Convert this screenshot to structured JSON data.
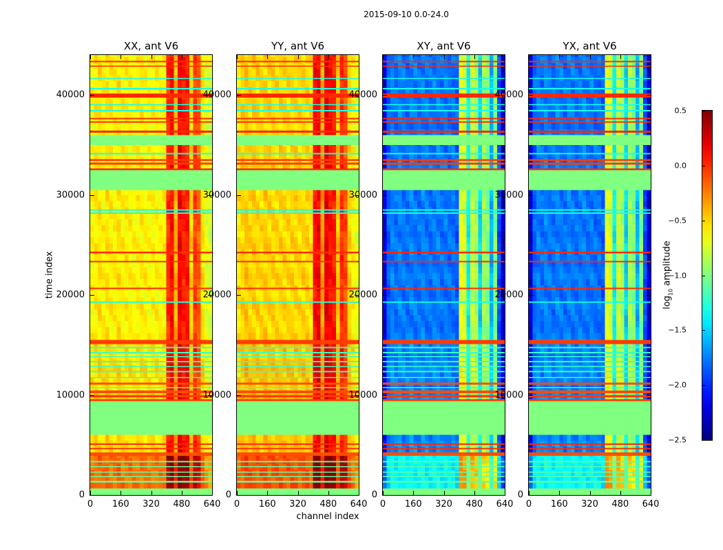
{
  "chart_data": {
    "type": "heatmap",
    "title": "2015-09-10 0.0-24.0",
    "xlabel": "channel index",
    "ylabel": "time index",
    "xlim": [
      0,
      640
    ],
    "ylim": [
      0,
      44000
    ],
    "xticks": [
      "0",
      "160",
      "320",
      "480",
      "640"
    ],
    "yticks": [
      "0",
      "10000",
      "20000",
      "30000",
      "40000"
    ],
    "colorbar": {
      "label_main": "log",
      "label_sub": "10",
      "label_rest": " amplitude",
      "range": [
        -2.5,
        0.5
      ],
      "ticks": [
        "0.5",
        "0.0",
        "−0.5",
        "−1.0",
        "−1.5",
        "−2.0",
        "−2.5"
      ],
      "tick_values": [
        0.5,
        0.0,
        -0.5,
        -1.0,
        -1.5,
        -2.0,
        -2.5
      ],
      "colormap": "jet"
    },
    "flagged_value": -1.0,
    "channel_bin_width": 20,
    "panels": [
      {
        "title": "XX, ant V6",
        "group": "parallel",
        "column_profile": [
          -0.62,
          -0.58,
          -0.55,
          -0.6,
          -0.55,
          -0.58,
          -0.6,
          -0.55,
          -0.6,
          -0.58,
          -0.6,
          -0.62,
          -0.6,
          -0.58,
          -0.6,
          -0.62,
          -0.6,
          -0.6,
          -0.62,
          -0.6,
          0.0,
          0.1,
          -0.4,
          0.15,
          0.05,
          0.05,
          -0.5,
          -0.05,
          -0.15,
          -0.55,
          -0.7,
          -0.75
        ]
      },
      {
        "title": "YY, ant V6",
        "group": "parallel",
        "column_profile": [
          -0.55,
          -0.5,
          -0.45,
          -0.5,
          -0.48,
          -0.5,
          -0.52,
          -0.48,
          -0.5,
          -0.5,
          -0.52,
          -0.5,
          -0.5,
          -0.52,
          -0.5,
          -0.5,
          -0.52,
          -0.5,
          -0.5,
          -0.55,
          0.1,
          0.15,
          -0.35,
          0.2,
          0.1,
          0.05,
          -0.45,
          0.0,
          -0.1,
          -0.5,
          -0.6,
          -0.7
        ]
      },
      {
        "title": "XY, ant V6",
        "group": "cross",
        "column_profile": [
          -2.2,
          -1.85,
          -1.75,
          -1.8,
          -1.75,
          -1.78,
          -1.8,
          -1.75,
          -1.78,
          -1.8,
          -1.75,
          -1.78,
          -1.8,
          -1.78,
          -1.75,
          -1.8,
          -1.78,
          -1.8,
          -1.8,
          -1.85,
          -0.7,
          -0.75,
          -1.4,
          -0.8,
          -0.9,
          -1.5,
          -0.9,
          -1.0,
          -1.6,
          -1.0,
          -1.9,
          -2.3
        ]
      },
      {
        "title": "YX, ant V6",
        "group": "cross",
        "column_profile": [
          -2.2,
          -1.85,
          -1.75,
          -1.8,
          -1.75,
          -1.78,
          -1.8,
          -1.75,
          -1.78,
          -1.8,
          -1.75,
          -1.78,
          -1.8,
          -1.78,
          -1.75,
          -1.8,
          -1.78,
          -1.8,
          -1.8,
          -1.85,
          -0.7,
          -0.75,
          -1.4,
          -0.8,
          -0.9,
          -1.5,
          -0.9,
          -1.0,
          -1.6,
          -1.0,
          -1.9,
          -2.3
        ]
      }
    ],
    "time_bands": [
      {
        "t0": 0,
        "t1": 690,
        "kind": "flagged"
      },
      {
        "t0": 690,
        "t1": 4260,
        "kind": "data",
        "offset": 0.4
      },
      {
        "t0": 4260,
        "t1": 6050,
        "kind": "data",
        "offset": 0.05
      },
      {
        "t0": 6050,
        "t1": 9400,
        "kind": "flagged"
      },
      {
        "t0": 9400,
        "t1": 15600,
        "kind": "data",
        "offset": 0.05
      },
      {
        "t0": 15600,
        "t1": 30500,
        "kind": "data",
        "offset": 0.0
      },
      {
        "t0": 30500,
        "t1": 32500,
        "kind": "flagged"
      },
      {
        "t0": 32500,
        "t1": 35000,
        "kind": "data",
        "offset": 0.0
      },
      {
        "t0": 35000,
        "t1": 36000,
        "kind": "flagged"
      },
      {
        "t0": 36000,
        "t1": 44000,
        "kind": "data",
        "offset": 0.0
      }
    ],
    "lines": [
      {
        "t0": 1250,
        "t1": 1400,
        "value": -1.1
      },
      {
        "t0": 1800,
        "t1": 1900,
        "value": -1.1
      },
      {
        "t0": 2250,
        "t1": 2350,
        "value": -1.1
      },
      {
        "t0": 2800,
        "t1": 2900,
        "value": -1.1
      },
      {
        "t0": 3300,
        "t1": 3400,
        "value": -1.1
      },
      {
        "t0": 3950,
        "t1": 4260,
        "value": -0.1
      },
      {
        "t0": 4600,
        "t1": 4700,
        "value": 0.0
      },
      {
        "t0": 5050,
        "t1": 5150,
        "value": 0.0
      },
      {
        "t0": 9400,
        "t1": 9600,
        "value": -0.05
      },
      {
        "t0": 9800,
        "t1": 10000,
        "value": -0.05
      },
      {
        "t0": 10200,
        "t1": 10450,
        "value": -0.1
      },
      {
        "t0": 10700,
        "t1": 10800,
        "value": -1.2
      },
      {
        "t0": 11050,
        "t1": 11250,
        "value": -0.1
      },
      {
        "t0": 11700,
        "t1": 11800,
        "value": -1.2
      },
      {
        "t0": 12300,
        "t1": 12400,
        "value": -1.2
      },
      {
        "t0": 12800,
        "t1": 12900,
        "value": -1.2
      },
      {
        "t0": 13300,
        "t1": 13400,
        "value": -1.2
      },
      {
        "t0": 13800,
        "t1": 13900,
        "value": -1.2
      },
      {
        "t0": 14200,
        "t1": 14300,
        "value": -1.2
      },
      {
        "t0": 14700,
        "t1": 14800,
        "value": -1.2
      },
      {
        "t0": 15100,
        "t1": 15500,
        "value": -0.05
      },
      {
        "t0": 19250,
        "t1": 19350,
        "value": -1.3
      },
      {
        "t0": 20600,
        "t1": 20720,
        "value": 0.0
      },
      {
        "t0": 23300,
        "t1": 23400,
        "value": 0.0
      },
      {
        "t0": 24200,
        "t1": 24350,
        "value": 0.0
      },
      {
        "t0": 28150,
        "t1": 28250,
        "value": -1.3
      },
      {
        "t0": 28450,
        "t1": 28550,
        "value": -1.3
      },
      {
        "t0": 32500,
        "t1": 32650,
        "value": 0.0
      },
      {
        "t0": 33050,
        "t1": 33250,
        "value": -0.05
      },
      {
        "t0": 33450,
        "t1": 33600,
        "value": -0.05
      },
      {
        "t0": 34100,
        "t1": 34200,
        "value": -1.3
      },
      {
        "t0": 36250,
        "t1": 36450,
        "value": 0.0
      },
      {
        "t0": 37250,
        "t1": 37350,
        "value": 0.0
      },
      {
        "t0": 37600,
        "t1": 37700,
        "value": 0.0
      },
      {
        "t0": 38400,
        "t1": 38500,
        "value": -1.3
      },
      {
        "t0": 39000,
        "t1": 39100,
        "value": -1.3
      },
      {
        "t0": 39750,
        "t1": 40150,
        "value": 0.0
      },
      {
        "t0": 40600,
        "t1": 40700,
        "value": -1.3
      },
      {
        "t0": 41600,
        "t1": 41700,
        "value": -1.3
      },
      {
        "t0": 42850,
        "t1": 42950,
        "value": 0.0
      },
      {
        "t0": 43300,
        "t1": 43400,
        "value": 0.0
      }
    ]
  }
}
